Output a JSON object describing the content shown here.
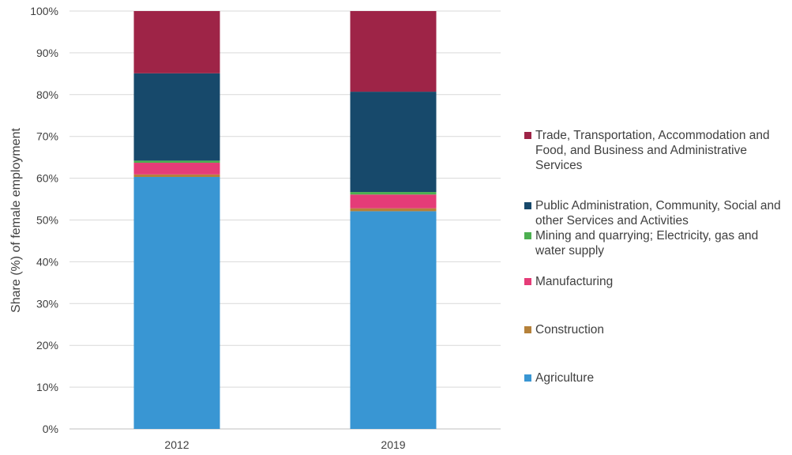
{
  "chart_data": {
    "type": "bar",
    "stacked": true,
    "title": "",
    "xlabel": "",
    "ylabel": "Share (%) of female employment",
    "ylim": [
      0,
      100
    ],
    "yticks": [
      "0%",
      "10%",
      "20%",
      "30%",
      "40%",
      "50%",
      "60%",
      "70%",
      "80%",
      "90%",
      "100%"
    ],
    "grid": true,
    "legend_position": "right",
    "categories": [
      "2012",
      "2019"
    ],
    "series": [
      {
        "name": "Agriculture",
        "color": "#3996D3",
        "values": [
          60.3,
          52.1
        ]
      },
      {
        "name": "Construction",
        "color": "#B5813A",
        "values": [
          0.6,
          0.7
        ]
      },
      {
        "name": "Manufacturing",
        "color": "#E53C78",
        "values": [
          2.8,
          3.3
        ]
      },
      {
        "name": "Mining and quarrying; Electricity, gas and water supply",
        "color": "#4CAF50",
        "values": [
          0.5,
          0.6
        ]
      },
      {
        "name": "Public Administration, Community, Social and other Services and Activities",
        "color": "#17496B",
        "values": [
          20.9,
          24.0
        ]
      },
      {
        "name": "Trade, Transportation, Accommodation and Food, and Business and Administrative Services",
        "color": "#9E2447",
        "values": [
          14.9,
          19.3
        ]
      }
    ],
    "legend_order": [
      5,
      4,
      3,
      2,
      1,
      0
    ]
  }
}
